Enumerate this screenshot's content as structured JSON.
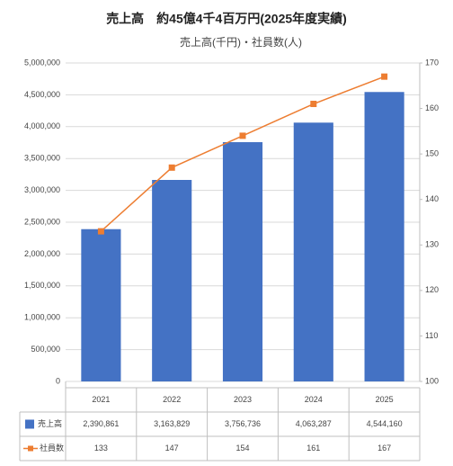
{
  "chart_data": {
    "type": "bar",
    "title": "売上高　約45億4千4百万円(2025年度実績)",
    "subtitle": "売上高(千円)・社員数(人)",
    "categories": [
      "2021",
      "2022",
      "2023",
      "2024",
      "2025"
    ],
    "series": [
      {
        "name": "売上高",
        "type": "bar",
        "color": "#4472c4",
        "values": [
          2390861,
          3163829,
          3756736,
          4063287,
          4544160
        ],
        "value_labels": [
          "2,390,861",
          "3,163,829",
          "3,756,736",
          "4,063,287",
          "4,544,160"
        ]
      },
      {
        "name": "社員数",
        "type": "line",
        "axis": "y2",
        "color": "#ed7d31",
        "values": [
          133,
          147,
          154,
          161,
          167
        ]
      }
    ],
    "ylim": [
      0,
      5000000
    ],
    "yticks": [
      {
        "value": 0,
        "label": "0"
      },
      {
        "value": 500000,
        "label": "500,000"
      },
      {
        "value": 1000000,
        "label": "1,000,000"
      },
      {
        "value": 1500000,
        "label": "1,500,000"
      },
      {
        "value": 2000000,
        "label": "2,000,000"
      },
      {
        "value": 2500000,
        "label": "2,500,000"
      },
      {
        "value": 3000000,
        "label": "3,000,000"
      },
      {
        "value": 3500000,
        "label": "3,500,000"
      },
      {
        "value": 4000000,
        "label": "4,000,000"
      },
      {
        "value": 4500000,
        "label": "4,500,000"
      },
      {
        "value": 5000000,
        "label": "5,000,000"
      }
    ],
    "y2lim": [
      100,
      170
    ],
    "y2ticks": [
      100,
      110,
      120,
      130,
      140,
      150,
      160,
      170
    ],
    "grid": true
  }
}
